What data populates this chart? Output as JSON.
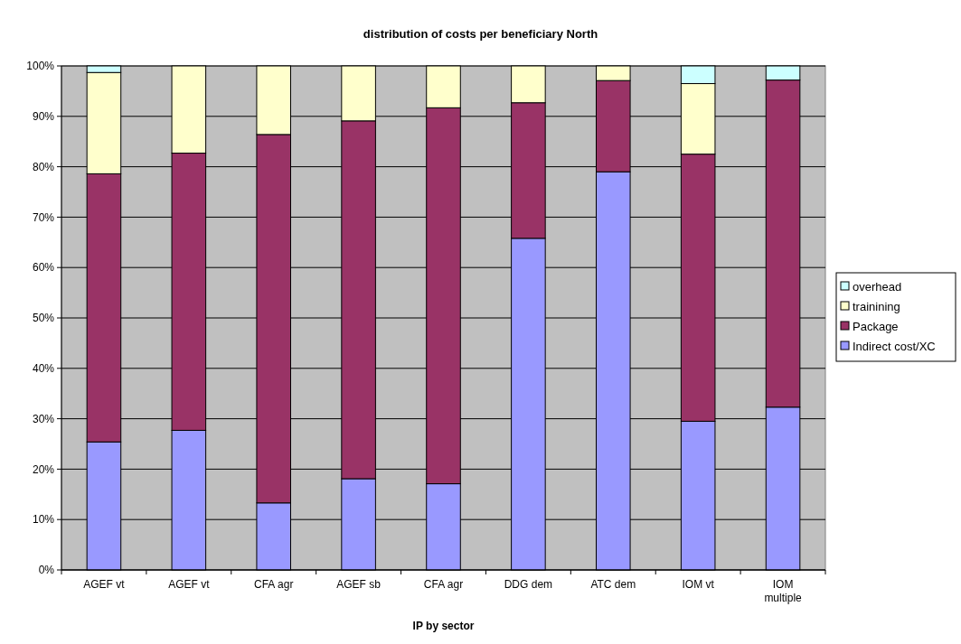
{
  "chart_data": {
    "type": "bar",
    "stacked": true,
    "title": "distribution of costs per beneficiary North",
    "xlabel": "IP by sector",
    "categories": [
      "AGEF vt",
      "AGEF vt",
      "CFA agr",
      "AGEF sb",
      "CFA agr",
      "DDG dem",
      "ATC dem",
      "IOM vt",
      "IOM multiple"
    ],
    "series": [
      {
        "name": "Indirect cost/XC",
        "color": "#9999ff",
        "values": [
          25.4,
          27.7,
          13.3,
          18.1,
          17.1,
          65.8,
          79.0,
          29.5,
          32.3
        ]
      },
      {
        "name": "Package",
        "color": "#993366",
        "values": [
          53.2,
          55.0,
          73.1,
          71.0,
          74.6,
          26.9,
          18.1,
          53.0,
          64.9
        ]
      },
      {
        "name": "trainining",
        "color": "#ffffcc",
        "values": [
          20.1,
          17.3,
          13.6,
          10.9,
          8.3,
          7.3,
          2.9,
          14.0,
          0
        ]
      },
      {
        "name": "overhead",
        "color": "#ccffff",
        "values": [
          1.3,
          0,
          0,
          0,
          0,
          0,
          0,
          3.5,
          2.8
        ]
      }
    ],
    "ylim": [
      0,
      100
    ],
    "yticks": [
      {
        "value": 0,
        "label": "0%"
      },
      {
        "value": 10,
        "label": "10%"
      },
      {
        "value": 20,
        "label": "20%"
      },
      {
        "value": 30,
        "label": "30%"
      },
      {
        "value": 40,
        "label": "40%"
      },
      {
        "value": 50,
        "label": "50%"
      },
      {
        "value": 60,
        "label": "60%"
      },
      {
        "value": 70,
        "label": "70%"
      },
      {
        "value": 80,
        "label": "80%"
      },
      {
        "value": 90,
        "label": "90%"
      },
      {
        "value": 100,
        "label": "100%"
      }
    ],
    "grid": "y",
    "legend": "right"
  }
}
